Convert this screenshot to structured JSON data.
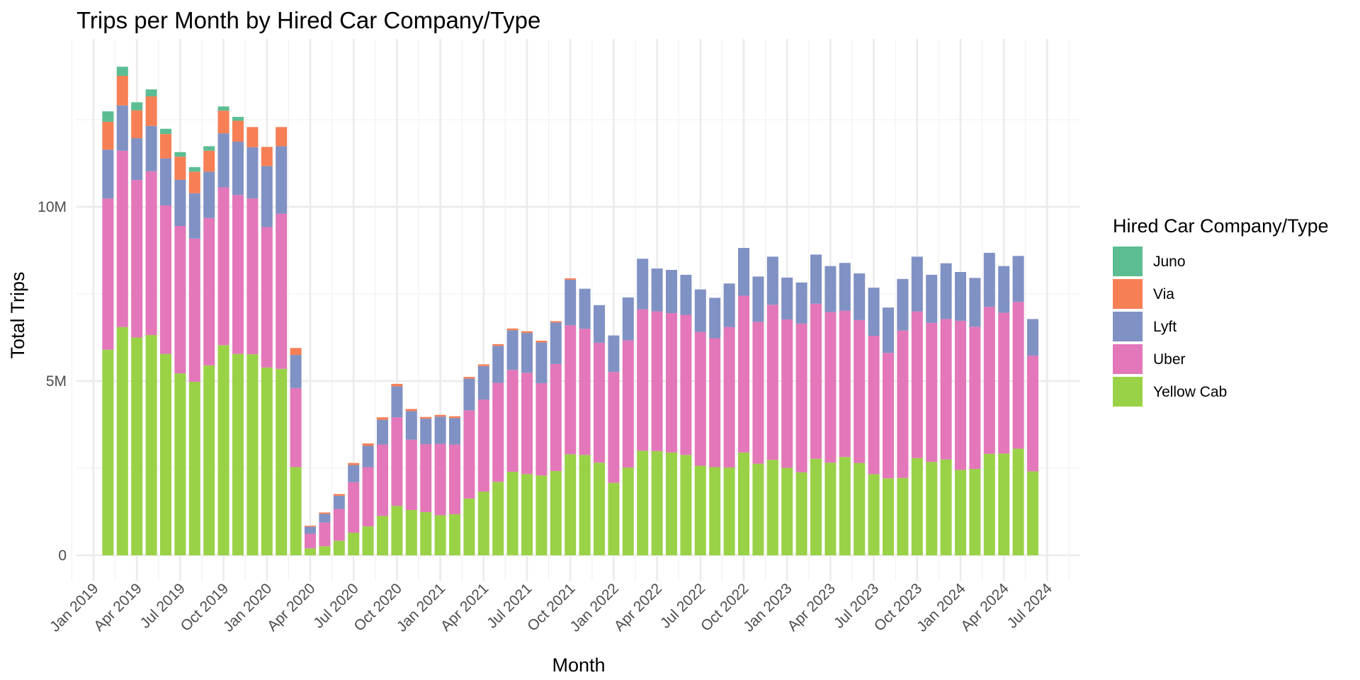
{
  "chart_data": {
    "type": "bar",
    "stacked": true,
    "title": "Trips per Month by Hired Car Company/Type",
    "xlabel": "Month",
    "ylabel": "Total Trips",
    "ylim": [
      0,
      14000000
    ],
    "y_ticks": [
      {
        "value": 0,
        "label": "0"
      },
      {
        "value": 5000000,
        "label": "5M"
      },
      {
        "value": 10000000,
        "label": "10M"
      }
    ],
    "x_ticks": [
      "Jan 2019",
      "Apr 2019",
      "Jul 2019",
      "Oct 2019",
      "Jan 2020",
      "Apr 2020",
      "Jul 2020",
      "Oct 2020",
      "Jan 2021",
      "Apr 2021",
      "Jul 2021",
      "Oct 2021",
      "Jan 2022",
      "Apr 2022",
      "Jul 2022",
      "Oct 2022",
      "Jan 2023",
      "Apr 2023",
      "Jul 2023",
      "Oct 2023",
      "Jan 2024",
      "Apr 2024",
      "Jul 2024"
    ],
    "grid": true,
    "legend": {
      "title": "Hired Car Company/Type",
      "position": "right"
    },
    "categories": [
      "Feb 2019",
      "Mar 2019",
      "Apr 2019",
      "May 2019",
      "Jun 2019",
      "Jul 2019",
      "Aug 2019",
      "Sep 2019",
      "Oct 2019",
      "Nov 2019",
      "Dec 2019",
      "Jan 2020",
      "Feb 2020",
      "Mar 2020",
      "Apr 2020",
      "May 2020",
      "Jun 2020",
      "Jul 2020",
      "Aug 2020",
      "Sep 2020",
      "Oct 2020",
      "Nov 2020",
      "Dec 2020",
      "Jan 2021",
      "Feb 2021",
      "Mar 2021",
      "Apr 2021",
      "May 2021",
      "Jun 2021",
      "Jul 2021",
      "Aug 2021",
      "Sep 2021",
      "Oct 2021",
      "Nov 2021",
      "Dec 2021",
      "Jan 2022",
      "Feb 2022",
      "Mar 2022",
      "Apr 2022",
      "May 2022",
      "Jun 2022",
      "Jul 2022",
      "Aug 2022",
      "Sep 2022",
      "Oct 2022",
      "Nov 2022",
      "Dec 2022",
      "Jan 2023",
      "Feb 2023",
      "Mar 2023",
      "Apr 2023",
      "May 2023",
      "Jun 2023",
      "Jul 2023",
      "Aug 2023",
      "Sep 2023",
      "Oct 2023",
      "Nov 2023",
      "Dec 2023",
      "Jan 2024",
      "Feb 2024",
      "Mar 2024",
      "Apr 2024",
      "May 2024",
      "Jun 2024"
    ],
    "series": [
      {
        "name": "Yellow Cab",
        "color": "#9ad247",
        "values": [
          5900000,
          6550000,
          6250000,
          6320000,
          5780000,
          5220000,
          4980000,
          5450000,
          6030000,
          5780000,
          5770000,
          5390000,
          5350000,
          2530000,
          200000,
          260000,
          420000,
          650000,
          830000,
          1130000,
          1420000,
          1300000,
          1240000,
          1150000,
          1180000,
          1630000,
          1830000,
          2110000,
          2400000,
          2330000,
          2290000,
          2420000,
          2900000,
          2880000,
          2660000,
          2080000,
          2520000,
          3000000,
          2990000,
          2950000,
          2880000,
          2570000,
          2530000,
          2520000,
          2950000,
          2630000,
          2740000,
          2510000,
          2380000,
          2770000,
          2660000,
          2820000,
          2650000,
          2330000,
          2210000,
          2220000,
          2790000,
          2680000,
          2750000,
          2450000,
          2480000,
          2910000,
          2920000,
          3060000,
          2410000
        ]
      },
      {
        "name": "Uber",
        "color": "#e377b9",
        "values": [
          4340000,
          5060000,
          4520000,
          4700000,
          4260000,
          4230000,
          4110000,
          4230000,
          4530000,
          4560000,
          4470000,
          4030000,
          4450000,
          2270000,
          420000,
          680000,
          910000,
          1450000,
          1700000,
          2050000,
          2540000,
          2020000,
          1950000,
          2050000,
          2000000,
          2530000,
          2640000,
          2840000,
          2920000,
          2910000,
          2650000,
          3070000,
          3700000,
          3620000,
          3440000,
          3180000,
          3650000,
          4060000,
          4010000,
          4000000,
          4020000,
          3840000,
          3700000,
          4030000,
          4500000,
          4070000,
          4450000,
          4260000,
          4270000,
          4450000,
          4320000,
          4200000,
          4100000,
          3970000,
          3600000,
          4230000,
          4210000,
          3990000,
          4030000,
          4280000,
          4080000,
          4220000,
          4040000,
          4210000,
          3320000
        ]
      },
      {
        "name": "Lyft",
        "color": "#8091c4",
        "values": [
          1400000,
          1300000,
          1200000,
          1300000,
          1350000,
          1330000,
          1300000,
          1330000,
          1550000,
          1530000,
          1470000,
          1750000,
          1940000,
          950000,
          200000,
          250000,
          380000,
          490000,
          610000,
          710000,
          890000,
          820000,
          730000,
          780000,
          760000,
          910000,
          960000,
          1060000,
          1140000,
          1140000,
          1170000,
          1190000,
          1310000,
          1150000,
          1080000,
          1050000,
          1230000,
          1450000,
          1230000,
          1240000,
          1150000,
          1220000,
          1160000,
          1250000,
          1370000,
          1300000,
          1380000,
          1200000,
          1180000,
          1410000,
          1320000,
          1370000,
          1340000,
          1380000,
          1300000,
          1480000,
          1570000,
          1380000,
          1600000,
          1400000,
          1400000,
          1550000,
          1340000,
          1320000,
          1050000
        ]
      },
      {
        "name": "Via",
        "color": "#f77f55",
        "values": [
          800000,
          850000,
          800000,
          850000,
          700000,
          660000,
          620000,
          600000,
          650000,
          600000,
          580000,
          550000,
          550000,
          200000,
          30000,
          40000,
          50000,
          60000,
          70000,
          70000,
          70000,
          60000,
          50000,
          50000,
          50000,
          50000,
          50000,
          50000,
          50000,
          50000,
          50000,
          40000,
          40000,
          0,
          0,
          0,
          0,
          0,
          0,
          0,
          0,
          0,
          0,
          0,
          0,
          0,
          0,
          0,
          0,
          0,
          0,
          0,
          0,
          0,
          0,
          0,
          0,
          0,
          0,
          0,
          0,
          0,
          0,
          0,
          0
        ]
      },
      {
        "name": "Juno",
        "color": "#5cbd93",
        "values": [
          300000,
          260000,
          230000,
          200000,
          150000,
          130000,
          130000,
          130000,
          120000,
          110000,
          0,
          0,
          0,
          0,
          0,
          0,
          0,
          0,
          0,
          0,
          0,
          0,
          0,
          0,
          0,
          0,
          0,
          0,
          0,
          0,
          0,
          0,
          0,
          0,
          0,
          0,
          0,
          0,
          0,
          0,
          0,
          0,
          0,
          0,
          0,
          0,
          0,
          0,
          0,
          0,
          0,
          0,
          0,
          0,
          0,
          0,
          0,
          0,
          0,
          0,
          0,
          0,
          0,
          0,
          0
        ]
      }
    ]
  }
}
